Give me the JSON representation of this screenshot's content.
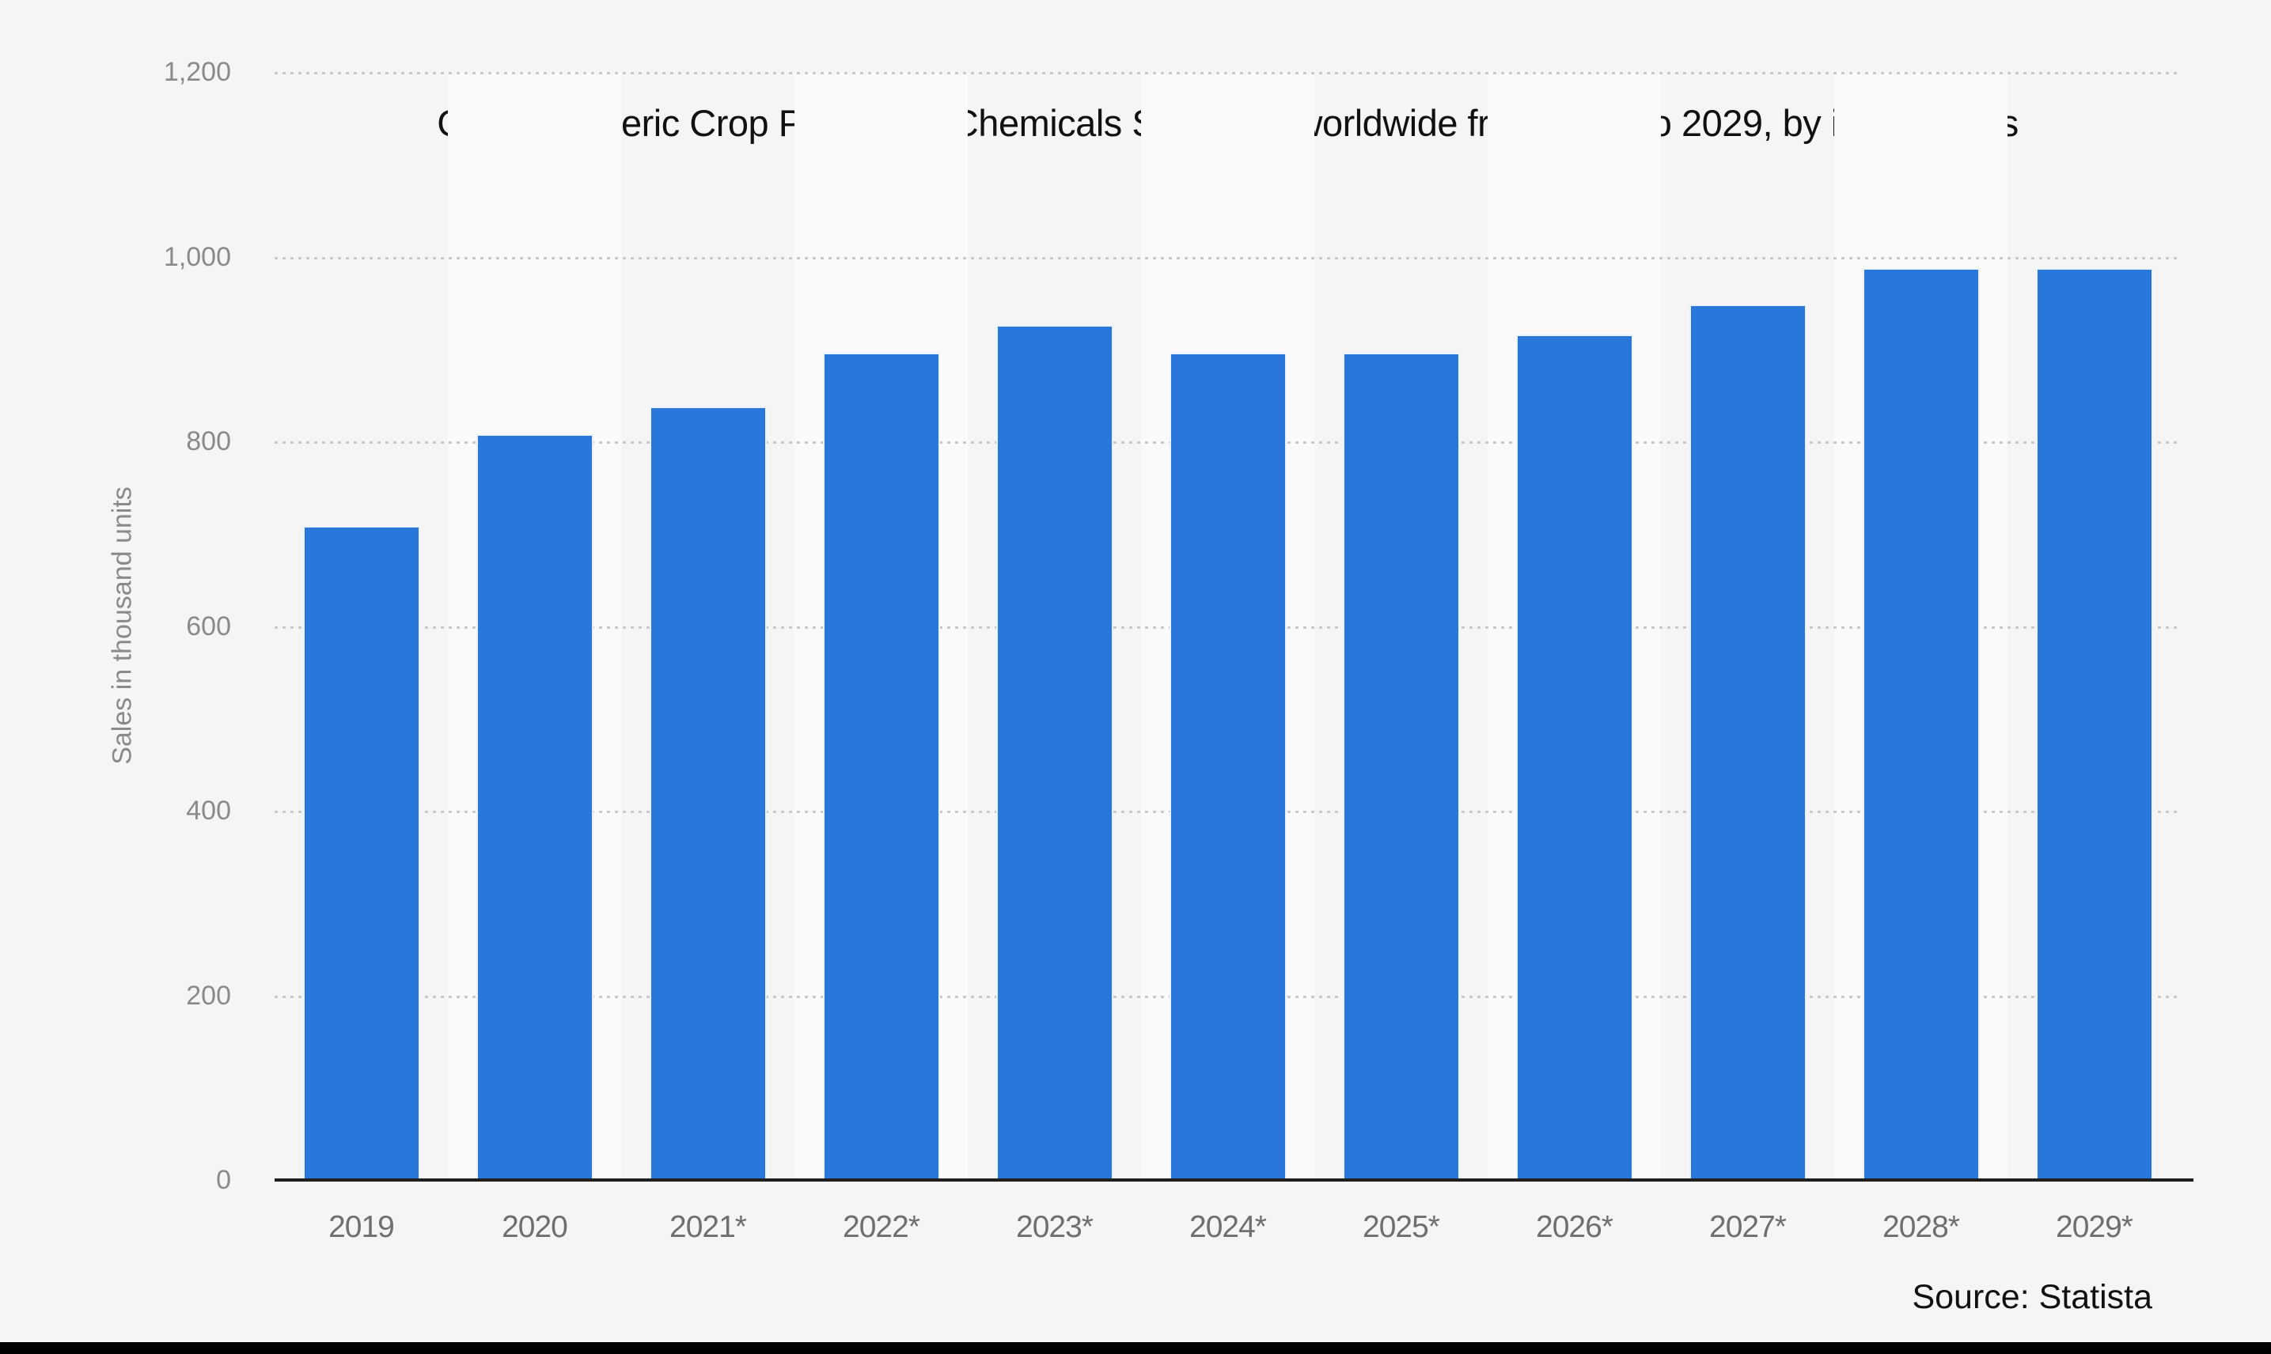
{
  "title": "Global Generic Crop Protection Chemicals Spending worldwide from 2019 to 2029, by insecticides",
  "source": "Source: Statista",
  "y_axis": {
    "label": "Sales in thousand units",
    "tick_labels": [
      "1,200",
      "1,000",
      "800",
      "600",
      "400",
      "200",
      "0"
    ]
  },
  "chart_data": {
    "type": "bar",
    "categories": [
      "2019",
      "2020",
      "2021*",
      "2022*",
      "2023*",
      "2024*",
      "2025*",
      "2026*",
      "2027*",
      "2028*",
      "2029*"
    ],
    "values": [
      708,
      808,
      838,
      896,
      926,
      896,
      896,
      916,
      948,
      988,
      988
    ],
    "series_name": "Insecticides",
    "title": "Global Generic Crop Protection Chemicals Spending worldwide from 2019 to 2029, by insecticides",
    "xlabel": "",
    "ylabel": "Sales in thousand units",
    "ylim": [
      0,
      1200
    ],
    "ytick_step": 200,
    "grid": "dotted horizontal gridlines",
    "legend": "none",
    "plot_bands": "alternating vertical column shading"
  },
  "colors": {
    "bar": "#2a77db",
    "band_light": "#fafafa",
    "background": "#f5f5f6",
    "gridline": "#c9c9c9",
    "axis_line": "#1f1f1f",
    "y_tick_text": "#8a8a8a",
    "x_tick_text": "#6f6f6f",
    "title_text": "#111111",
    "source_text": "#111111",
    "footer_bar": "#000000"
  }
}
